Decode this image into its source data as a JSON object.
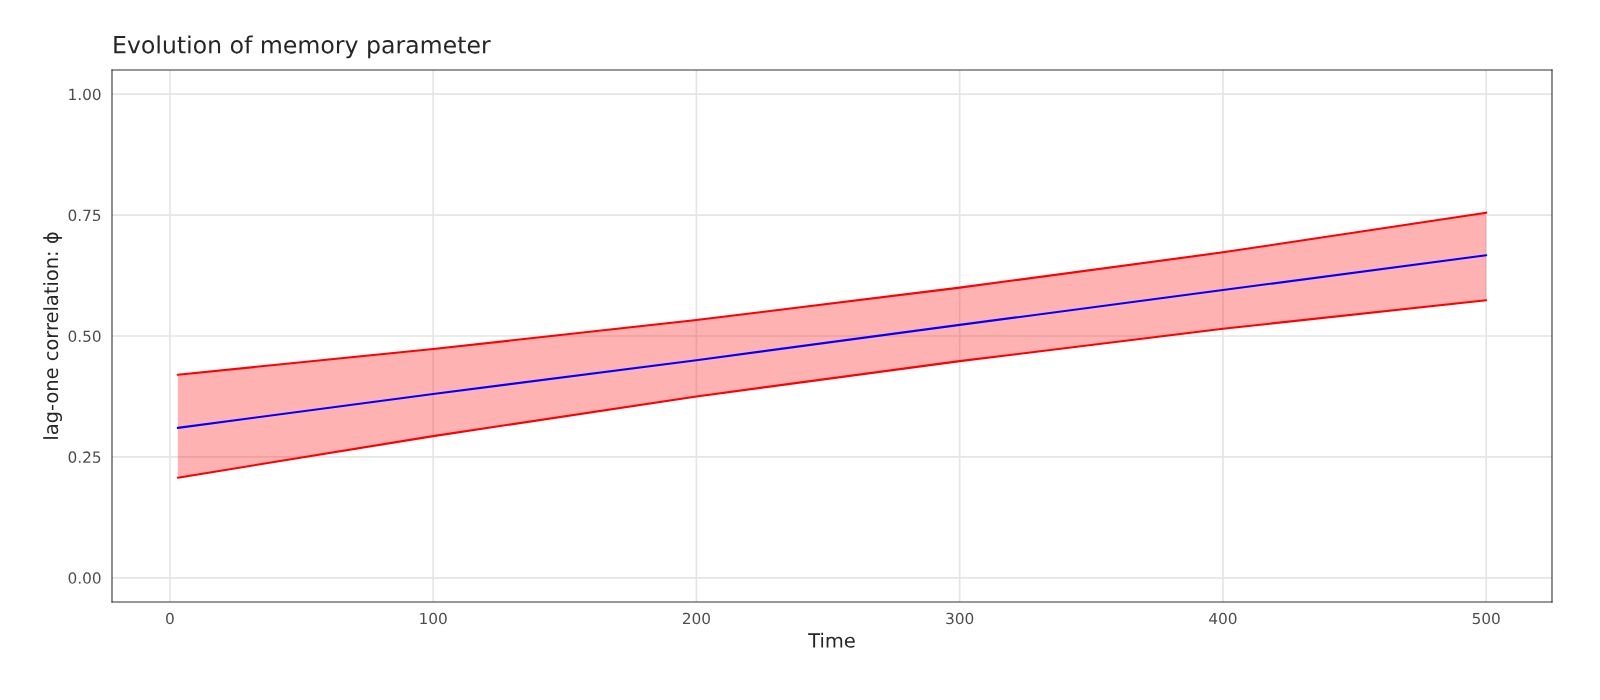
{
  "chart_data": {
    "type": "line",
    "title": "Evolution of memory parameter",
    "xlabel": "Time",
    "ylabel": "lag-one correlation: ϕ",
    "x": [
      3,
      100,
      200,
      300,
      400,
      500
    ],
    "series": [
      {
        "color": "#0000ff",
        "values": [
          0.31,
          0.38,
          0.45,
          0.523,
          0.595,
          0.667
        ],
        "lower": [
          0.207,
          0.293,
          0.375,
          0.448,
          0.515,
          0.574
        ],
        "upper": [
          0.42,
          0.473,
          0.533,
          0.6,
          0.673,
          0.755
        ]
      },
      {
        "color": "#ff0000",
        "values": [
          0.42,
          0.473,
          0.533,
          0.6,
          0.673,
          0.755
        ]
      },
      {
        "color": "#ff0000",
        "values": [
          0.207,
          0.293,
          0.375,
          0.448,
          0.515,
          0.574
        ]
      }
    ],
    "xlim": [
      -22,
      525
    ],
    "ylim": [
      -0.05,
      1.05
    ],
    "xticks": [
      0,
      100,
      200,
      300,
      400,
      500
    ],
    "yticks": [
      {
        "value": 0,
        "label": "0.00"
      },
      {
        "value": 0.25,
        "label": "0.25"
      },
      {
        "value": 0.5,
        "label": "0.50"
      },
      {
        "value": 0.75,
        "label": "0.75"
      },
      {
        "value": 1,
        "label": "1.00"
      }
    ],
    "grid": true,
    "legend": false
  }
}
